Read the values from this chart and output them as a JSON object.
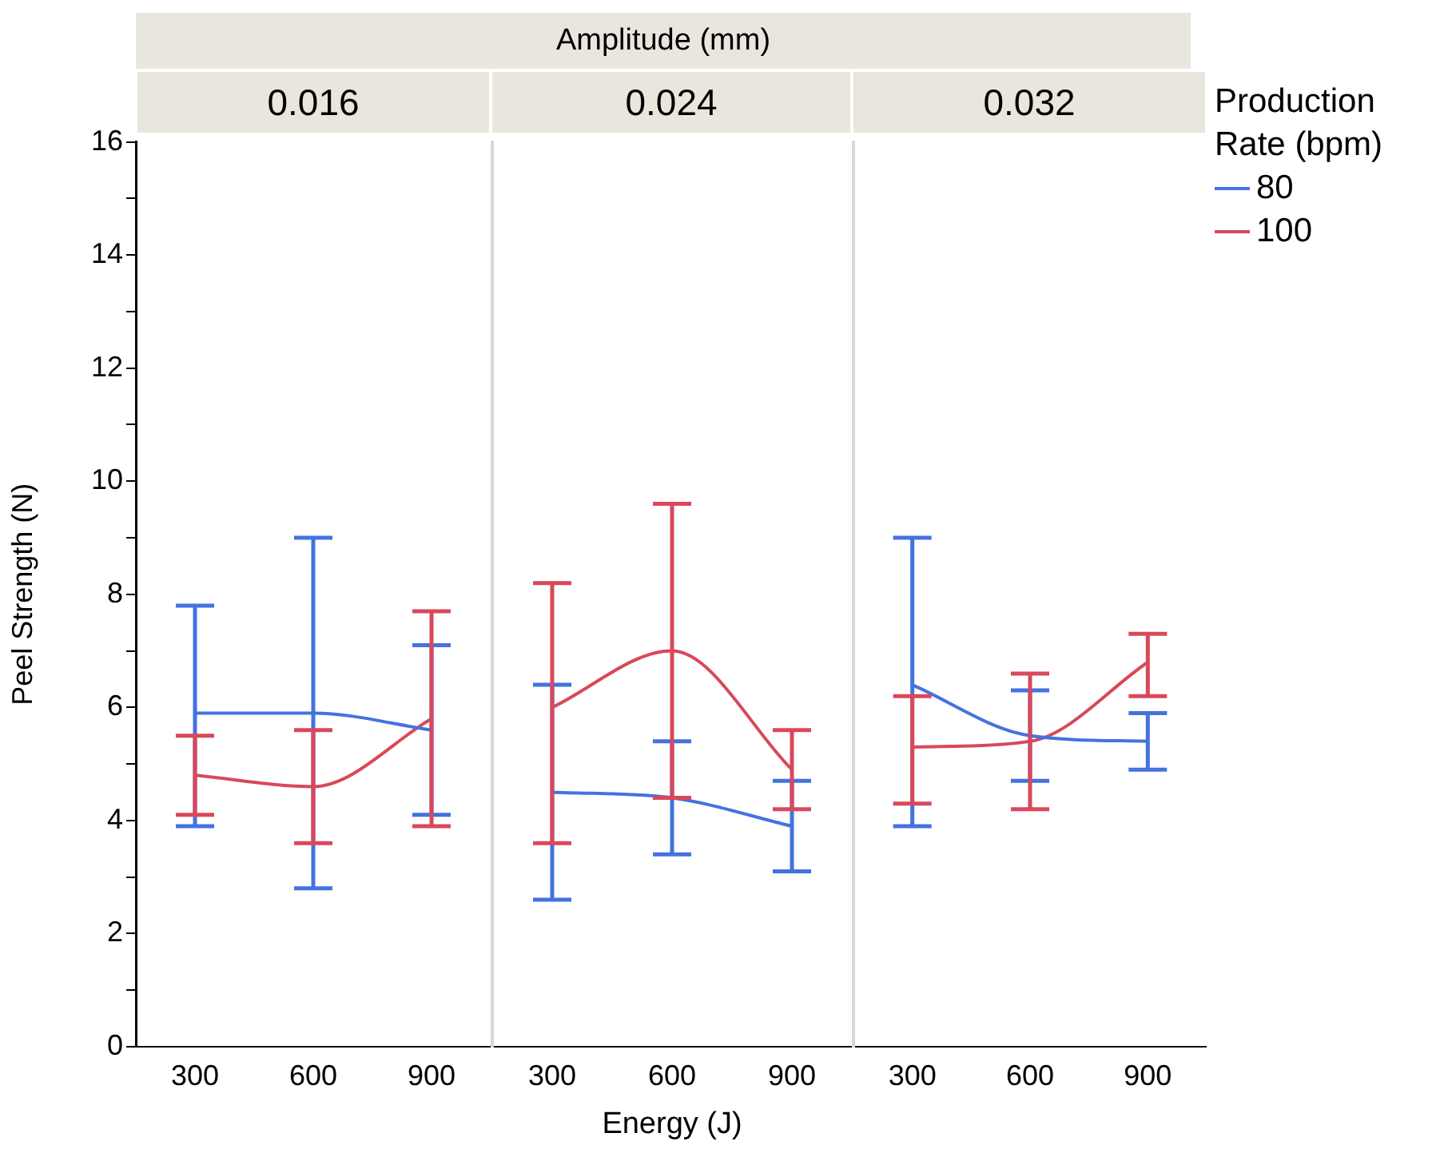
{
  "chart_data": [
    {
      "type": "line",
      "title": "0.016",
      "ylabel": "Peel Strength (N)",
      "annotations": [
        "Amplitude (mm)"
      ],
      "categories": [
        "300",
        "600",
        "900"
      ],
      "ylim": [
        0,
        16
      ],
      "yticks": [
        0,
        {
          "value": 1,
          "label": null
        },
        2,
        {
          "value": 3,
          "label": null
        },
        4,
        {
          "value": 5,
          "label": null
        },
        6,
        {
          "value": 7,
          "label": null
        },
        8,
        {
          "value": 9,
          "label": null
        },
        10,
        {
          "value": 11,
          "label": null
        },
        12,
        {
          "value": 13,
          "label": null
        },
        14,
        {
          "value": 15,
          "label": null
        },
        16
      ],
      "legend": false,
      "series": [
        {
          "color": "#4472e0",
          "values": [
            5.9,
            5.9,
            5.6
          ],
          "errors": [
            [
              3.9,
              7.8
            ],
            [
              2.8,
              9.0
            ],
            [
              4.1,
              7.1
            ]
          ]
        },
        {
          "color": "#d9485a",
          "values": [
            4.8,
            4.6,
            5.8
          ],
          "errors": [
            [
              4.1,
              5.5
            ],
            [
              3.6,
              5.6
            ],
            [
              3.9,
              7.7
            ]
          ]
        }
      ]
    },
    {
      "type": "line",
      "title": "0.024",
      "xlabel": "Energy (J)",
      "categories": [
        "300",
        "600",
        "900"
      ],
      "ylim": [
        0,
        16
      ],
      "tick_labels": "x",
      "legend": false,
      "series": [
        {
          "color": "#4472e0",
          "values": [
            4.5,
            4.4,
            3.9
          ],
          "errors": [
            [
              2.6,
              6.4
            ],
            [
              3.4,
              5.4
            ],
            [
              3.1,
              4.7
            ]
          ]
        },
        {
          "color": "#d9485a",
          "values": [
            6.0,
            7.0,
            4.9
          ],
          "errors": [
            [
              3.6,
              8.2
            ],
            [
              4.4,
              9.6
            ],
            [
              4.2,
              5.6
            ]
          ]
        }
      ]
    },
    {
      "type": "line",
      "title": "0.032",
      "legend_title": "Production Rate (bpm)",
      "categories": [
        "300",
        "600",
        "900"
      ],
      "ylim": [
        0,
        16
      ],
      "tick_labels": "x",
      "legend": "right",
      "series": [
        {
          "name": "80",
          "color": "#4472e0",
          "values": [
            6.4,
            5.5,
            5.4
          ],
          "errors": [
            [
              3.9,
              9.0
            ],
            [
              4.7,
              6.3
            ],
            [
              4.9,
              5.9
            ]
          ]
        },
        {
          "name": "100",
          "color": "#d9485a",
          "values": [
            5.3,
            5.4,
            6.8
          ],
          "errors": [
            [
              4.3,
              6.2
            ],
            [
              4.2,
              6.6
            ],
            [
              6.2,
              7.3
            ]
          ]
        }
      ]
    }
  ]
}
